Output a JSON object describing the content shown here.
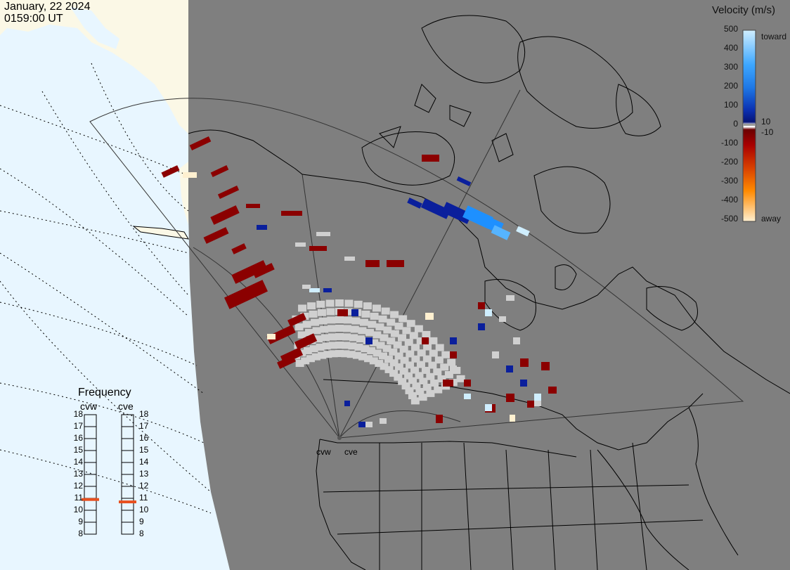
{
  "header": {
    "date": "January, 22 2024",
    "time": "0159:00 UT"
  },
  "velocity_scale": {
    "title": "Velocity (m/s)",
    "ticks": [
      "500",
      "400",
      "300",
      "200",
      "100",
      "0",
      "-100",
      "-200",
      "-300",
      "-400",
      "-500"
    ],
    "toward_label": "toward",
    "away_label": "away",
    "threshold_pos": "10",
    "threshold_neg": "-10",
    "colors": {
      "toward_high": "#cfeeff",
      "toward_mid": "#1e90ff",
      "toward_low": "#0a1f9c",
      "zero_band": "#ffffff",
      "away_low": "#8b0000",
      "away_mid": "#e65c00",
      "away_high": "#fff0d0"
    }
  },
  "frequency": {
    "title": "Frequency",
    "radars": [
      {
        "name": "cvw",
        "value": 10.9
      },
      {
        "name": "cve",
        "value": 10.7
      }
    ],
    "scale": [
      "18",
      "17",
      "16",
      "15",
      "14",
      "13",
      "12",
      "11",
      "10",
      "9",
      "8"
    ],
    "marker_color": "#e8501f"
  },
  "sites": [
    {
      "name": "cvw"
    },
    {
      "name": "cve"
    }
  ],
  "colors": {
    "land": "#7f7f7f",
    "ocean": "#e8f6ff",
    "daylight_land": "#fbf8e6",
    "ground_scatter": "#d0d0d0"
  }
}
